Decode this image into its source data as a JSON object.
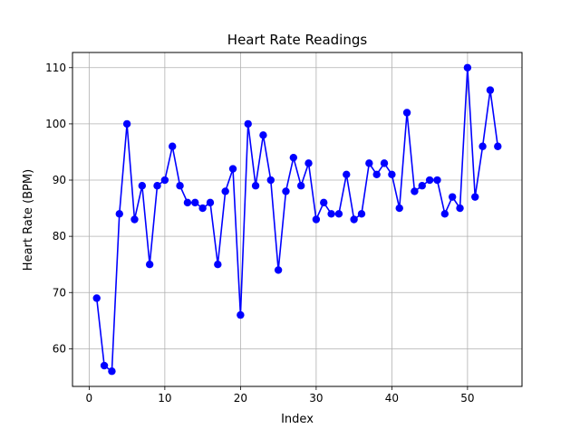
{
  "chart_data": {
    "type": "line",
    "title": "Heart Rate Readings",
    "xlabel": "Index",
    "ylabel": "Heart Rate (BPM)",
    "xlim": [
      -2.2,
      57.2
    ],
    "ylim": [
      53.3,
      112.7
    ],
    "xticks": [
      0,
      10,
      20,
      30,
      40,
      50
    ],
    "yticks": [
      60,
      70,
      80,
      90,
      100,
      110
    ],
    "grid": true,
    "series": [
      {
        "color": "#0000ff",
        "marker": "circle",
        "x": [
          1,
          2,
          3,
          4,
          5,
          6,
          7,
          8,
          9,
          10,
          11,
          12,
          13,
          14,
          15,
          16,
          17,
          18,
          19,
          20,
          21,
          22,
          23,
          24,
          25,
          26,
          27,
          28,
          29,
          30,
          31,
          32,
          33,
          34,
          35,
          36,
          37,
          38,
          39,
          40,
          41,
          42,
          43,
          44,
          45,
          46,
          47,
          48,
          49,
          50,
          51,
          52,
          53,
          54
        ],
        "values": [
          69,
          57,
          56,
          84,
          100,
          83,
          89,
          75,
          89,
          90,
          96,
          89,
          86,
          86,
          85,
          86,
          75,
          88,
          92,
          66,
          100,
          89,
          98,
          90,
          74,
          88,
          94,
          89,
          93,
          83,
          86,
          84,
          84,
          91,
          83,
          84,
          93,
          91,
          93,
          91,
          85,
          102,
          88,
          89,
          90,
          90,
          84,
          87,
          85,
          110,
          87,
          96,
          106,
          96
        ]
      }
    ]
  }
}
